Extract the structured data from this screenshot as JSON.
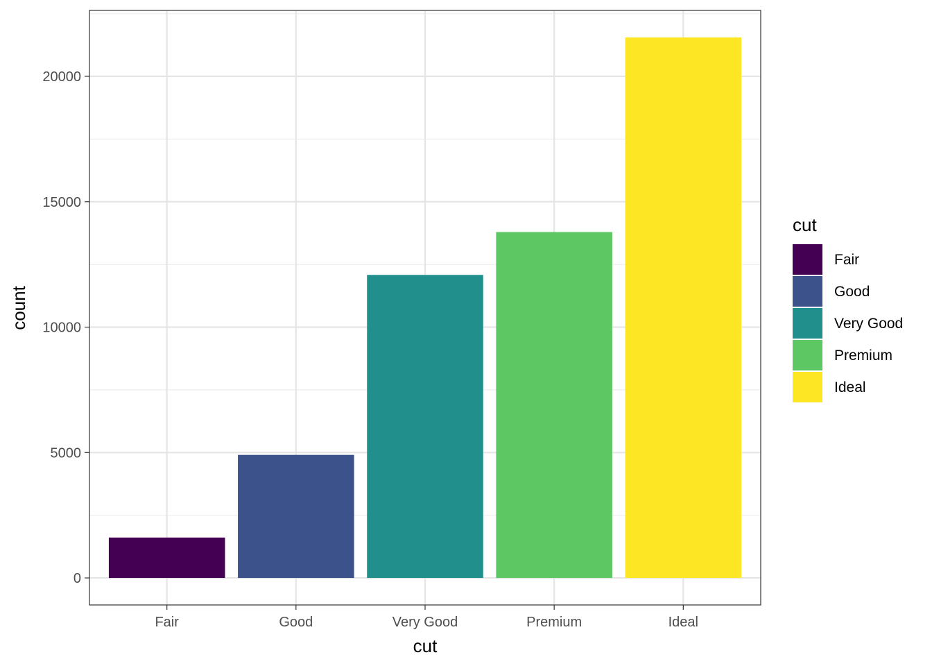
{
  "chart_data": {
    "type": "bar",
    "xlabel": "cut",
    "ylabel": "count",
    "categories": [
      "Fair",
      "Good",
      "Very Good",
      "Premium",
      "Ideal"
    ],
    "values": [
      1610,
      4906,
      12082,
      13791,
      21551
    ],
    "colors": [
      "#440154",
      "#3b528b",
      "#21908c",
      "#5dc863",
      "#fde725"
    ],
    "ylim": [
      -1077.55,
      22628.55
    ],
    "yticks": [
      0,
      5000,
      10000,
      15000,
      20000
    ],
    "ytick_labels": [
      "0",
      "5000",
      "10000",
      "15000",
      "20000"
    ],
    "grid": true,
    "legend": {
      "title": "cut",
      "position": "right",
      "items": [
        "Fair",
        "Good",
        "Very Good",
        "Premium",
        "Ideal"
      ]
    }
  }
}
